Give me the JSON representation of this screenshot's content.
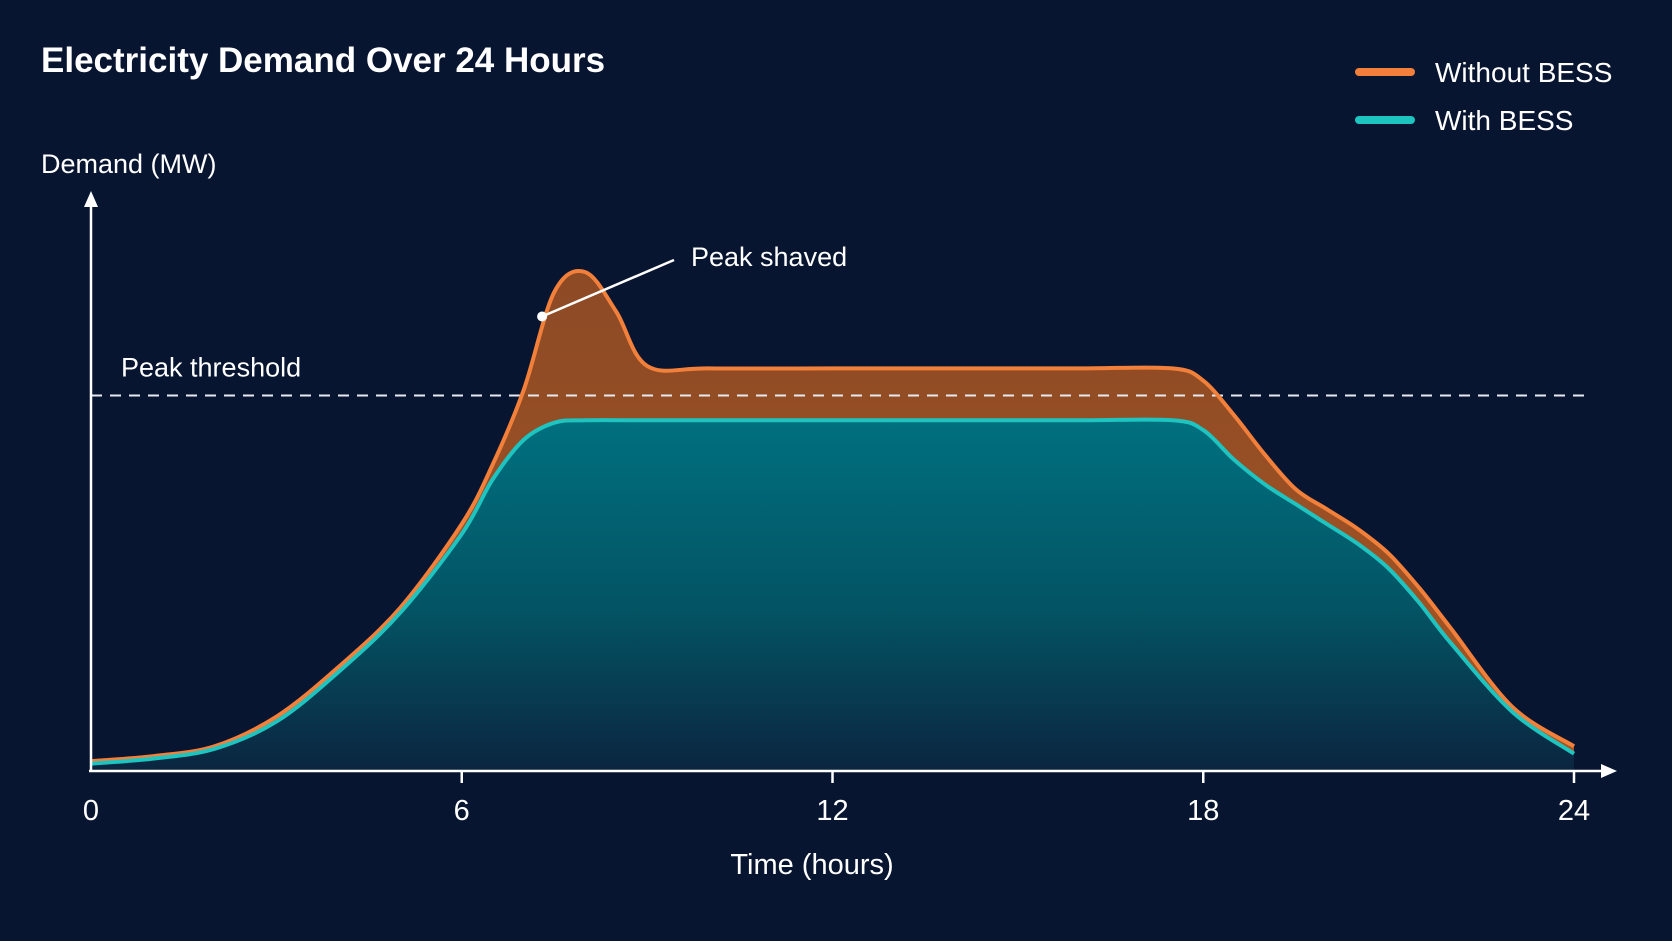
{
  "colors": {
    "background": "#081531",
    "without_bess": "#f2803a",
    "with_bess": "#1ec4c0",
    "axis": "#ffffff",
    "threshold": "#e6e9ef"
  },
  "chart_data": {
    "type": "area",
    "title": "Electricity Demand Over 24 Hours",
    "xlabel": "Time (hours)",
    "ylabel": "Demand (MW)",
    "xlim": [
      0,
      24
    ],
    "ylim": [
      0,
      100
    ],
    "xticks": [
      0,
      6,
      12,
      18,
      24
    ],
    "grid": false,
    "legend_position": "top-right",
    "threshold": {
      "label": "Peak threshold",
      "value": 76
    },
    "annotation": {
      "label": "Peak shaved",
      "x": 7.3,
      "y": 92
    },
    "series": [
      {
        "name": "Without BESS",
        "color": "#f2803a",
        "x": [
          0,
          1,
          2,
          3,
          4,
          5,
          6,
          6.5,
          7,
          7.5,
          8,
          8.5,
          9,
          10,
          12,
          14,
          16,
          17.5,
          18,
          18.5,
          19,
          19.5,
          20,
          20.5,
          21,
          21.5,
          22,
          23,
          24
        ],
        "y": [
          2,
          3,
          5,
          11,
          21,
          33,
          50,
          62,
          77,
          97,
          101,
          93,
          82,
          81.5,
          81.5,
          81.5,
          81.5,
          81.5,
          79,
          72,
          64,
          57,
          53,
          49,
          44,
          37,
          29,
          13,
          5
        ]
      },
      {
        "name": "With BESS",
        "color": "#1ec4c0",
        "x": [
          0,
          1,
          2,
          3,
          4,
          5,
          6,
          6.5,
          7,
          7.5,
          8,
          9,
          10,
          12,
          14,
          16,
          17.5,
          18,
          18.5,
          19,
          19.5,
          20,
          20.5,
          21,
          21.5,
          22,
          23,
          24
        ],
        "y": [
          1.5,
          2.5,
          4.5,
          10,
          20,
          32,
          48,
          59,
          67,
          70.5,
          71,
          71,
          71,
          71,
          71,
          71,
          71,
          69,
          63,
          58,
          54,
          50,
          46,
          41,
          34,
          26,
          12,
          3.5
        ]
      }
    ]
  }
}
